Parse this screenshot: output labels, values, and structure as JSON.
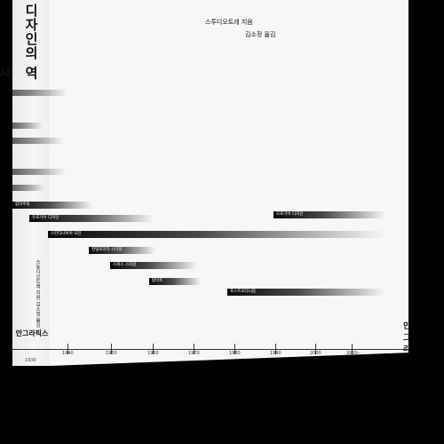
{
  "spine": {
    "title": "디자인의 역사",
    "author_translator": "스튜디오트레 지음 김소정 옮김",
    "publisher": "안그라픽스",
    "year": "1930"
  },
  "cover": {
    "author": "스투디오트레 지음",
    "translator": "김소정 옮김",
    "publisher": "안그라픽스"
  },
  "timeline_bars": [
    {
      "label": "합리주의"
    },
    {
      "label": "유로기어 디자인"
    },
    {
      "label": "스칸디나비아 모던"
    },
    {
      "label": "컨템포러리 스타일"
    },
    {
      "label": "스위스 스타일"
    },
    {
      "label": "팝아트"
    },
    {
      "label": "오로기어 디자인"
    },
    {
      "label": "포스트모더니즘"
    }
  ],
  "axis": {
    "ticks": [
      "1940",
      "1950",
      "1960",
      "1970",
      "1980",
      "1990",
      "2000",
      "2000–"
    ]
  }
}
